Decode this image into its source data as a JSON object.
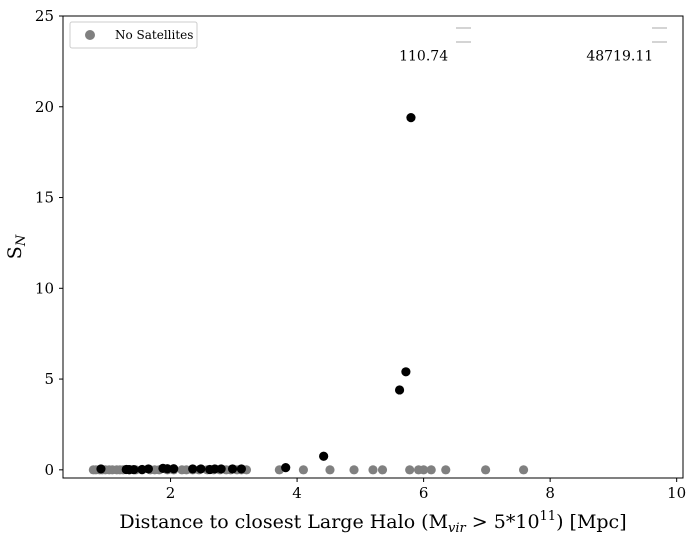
{
  "chart_data": {
    "type": "scatter",
    "xlabel_parts": [
      "Distance to closest Large Halo (M",
      "vir",
      " > 5*10",
      "11",
      ") [Mpc]"
    ],
    "ylabel_parts": [
      "S",
      "N"
    ],
    "xlim": [
      0.3,
      10.1
    ],
    "ylim": [
      -0.45,
      25
    ],
    "xticks": [
      2,
      4,
      6,
      8,
      10
    ],
    "yticks": [
      0,
      5,
      10,
      15,
      20,
      25
    ],
    "grid": false,
    "legend": {
      "position": "upper-left",
      "entries": [
        "No Satellites"
      ]
    },
    "colors": {
      "no_satellites": "#808080",
      "with_satellites": "#000000"
    },
    "annotations": [
      {
        "text": "110.74",
        "x": 6.0,
        "y": 22.55
      },
      {
        "text": "48719.11",
        "x": 9.1,
        "y": 22.55
      }
    ],
    "series": [
      {
        "name": "No Satellites",
        "x": [
          0.78,
          0.82,
          0.88,
          0.92,
          0.97,
          1.03,
          1.08,
          1.15,
          1.2,
          1.25,
          1.35,
          1.45,
          1.55,
          1.68,
          1.75,
          1.82,
          1.95,
          2.05,
          2.18,
          2.25,
          2.35,
          2.45,
          2.58,
          2.68,
          2.78,
          2.88,
          2.95,
          3.05,
          3.12,
          3.2,
          3.72,
          4.1,
          4.52,
          4.9,
          5.2,
          5.35,
          5.78,
          5.92,
          6.0,
          6.12,
          6.35,
          6.98,
          7.58
        ],
        "y": [
          0,
          0,
          0,
          0,
          0,
          0,
          0,
          0,
          0,
          0,
          0,
          0,
          0,
          0,
          0,
          0,
          0,
          0,
          0,
          0,
          0,
          0,
          0,
          0,
          0,
          0,
          0,
          0,
          0,
          0,
          0,
          0,
          0,
          0,
          0,
          0,
          0,
          0,
          0,
          0,
          0,
          0,
          0
        ]
      },
      {
        "x": [
          0.9,
          1.3,
          1.35,
          1.42,
          1.55,
          1.65,
          1.88,
          1.95,
          2.05,
          2.35,
          2.48,
          2.62,
          2.7,
          2.8,
          2.98,
          3.12,
          3.82,
          4.42,
          5.62,
          5.72,
          5.8
        ],
        "y": [
          0.05,
          0.02,
          0.01,
          0.01,
          0.02,
          0.05,
          0.08,
          0.06,
          0.06,
          0.05,
          0.05,
          0.02,
          0.05,
          0.05,
          0.05,
          0.05,
          0.12,
          0.75,
          4.4,
          5.4,
          19.4
        ]
      }
    ]
  }
}
